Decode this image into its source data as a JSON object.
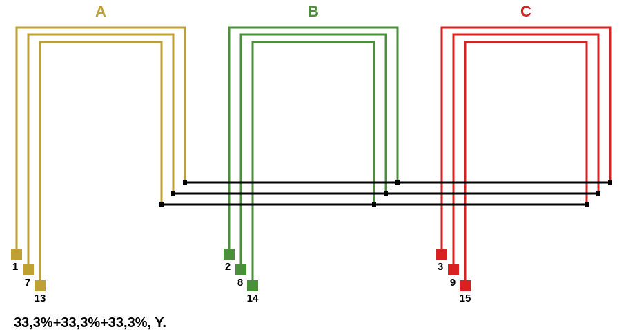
{
  "colors": {
    "phase_a": "#BFA035",
    "phase_b": "#4A8F3A",
    "phase_c": "#D92121",
    "bus": "#000000"
  },
  "phases": [
    {
      "name": "A",
      "color": "#BFA035",
      "terminals": [
        "1",
        "7",
        "13"
      ]
    },
    {
      "name": "B",
      "color": "#4A8F3A",
      "terminals": [
        "2",
        "8",
        "14"
      ]
    },
    {
      "name": "C",
      "color": "#D92121",
      "terminals": [
        "3",
        "9",
        "15"
      ]
    }
  ],
  "footer": {
    "text": "33,3%+33,3%+33,3%, Y."
  }
}
